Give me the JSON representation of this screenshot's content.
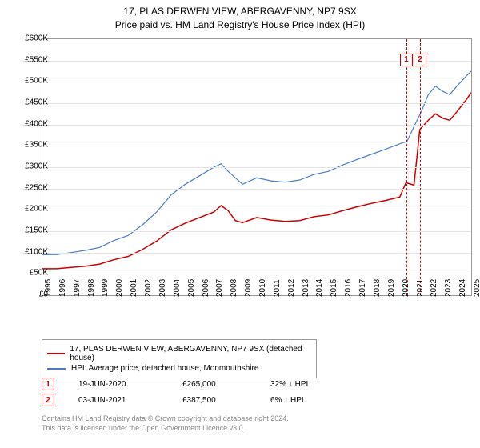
{
  "title_line1": "17, PLAS DERWEN VIEW, ABERGAVENNY, NP7 9SX",
  "title_line2": "Price paid vs. HM Land Registry's House Price Index (HPI)",
  "chart": {
    "type": "line",
    "background_color": "#ffffff",
    "grid_color": "#e5e5e5",
    "border_color": "#999999",
    "ylim": [
      0,
      600000
    ],
    "ytick_step": 50000,
    "yticklabels": [
      "£0",
      "£50K",
      "£100K",
      "£150K",
      "£200K",
      "£250K",
      "£300K",
      "£350K",
      "£400K",
      "£450K",
      "£500K",
      "£550K",
      "£600K"
    ],
    "xlim": [
      1995,
      2025
    ],
    "xticks": [
      1995,
      1996,
      1997,
      1998,
      1999,
      2000,
      2001,
      2002,
      2003,
      2004,
      2005,
      2006,
      2007,
      2008,
      2009,
      2010,
      2011,
      2012,
      2013,
      2014,
      2015,
      2016,
      2017,
      2018,
      2019,
      2020,
      2021,
      2022,
      2023,
      2024,
      2025
    ],
    "series": [
      {
        "name": "hpi",
        "color": "#4a7ec8",
        "width": 1.2,
        "data": [
          [
            1995,
            95000
          ],
          [
            1996,
            95000
          ],
          [
            1997,
            100000
          ],
          [
            1998,
            105000
          ],
          [
            1999,
            112000
          ],
          [
            2000,
            128000
          ],
          [
            2001,
            140000
          ],
          [
            2002,
            165000
          ],
          [
            2003,
            195000
          ],
          [
            2004,
            235000
          ],
          [
            2005,
            260000
          ],
          [
            2006,
            280000
          ],
          [
            2007,
            300000
          ],
          [
            2007.5,
            308000
          ],
          [
            2008,
            290000
          ],
          [
            2009,
            260000
          ],
          [
            2010,
            275000
          ],
          [
            2011,
            268000
          ],
          [
            2012,
            265000
          ],
          [
            2013,
            270000
          ],
          [
            2014,
            283000
          ],
          [
            2015,
            290000
          ],
          [
            2016,
            305000
          ],
          [
            2017,
            318000
          ],
          [
            2018,
            330000
          ],
          [
            2019,
            342000
          ],
          [
            2020,
            355000
          ],
          [
            2020.5,
            360000
          ],
          [
            2021,
            395000
          ],
          [
            2021.5,
            430000
          ],
          [
            2022,
            470000
          ],
          [
            2022.5,
            490000
          ],
          [
            2023,
            478000
          ],
          [
            2023.5,
            470000
          ],
          [
            2024,
            490000
          ],
          [
            2024.7,
            515000
          ],
          [
            2025,
            525000
          ]
        ]
      },
      {
        "name": "property",
        "color": "#cc0000",
        "width": 1.5,
        "data": [
          [
            1995,
            62000
          ],
          [
            1996,
            62000
          ],
          [
            1997,
            65000
          ],
          [
            1998,
            68000
          ],
          [
            1999,
            73000
          ],
          [
            2000,
            83000
          ],
          [
            2001,
            91000
          ],
          [
            2002,
            107000
          ],
          [
            2003,
            127000
          ],
          [
            2004,
            153000
          ],
          [
            2005,
            169000
          ],
          [
            2006,
            182000
          ],
          [
            2007,
            195000
          ],
          [
            2007.5,
            210000
          ],
          [
            2008,
            198000
          ],
          [
            2008.5,
            175000
          ],
          [
            2009,
            170000
          ],
          [
            2010,
            182000
          ],
          [
            2011,
            176000
          ],
          [
            2012,
            173000
          ],
          [
            2013,
            175000
          ],
          [
            2014,
            184000
          ],
          [
            2015,
            188000
          ],
          [
            2016,
            198000
          ],
          [
            2017,
            207000
          ],
          [
            2018,
            215000
          ],
          [
            2019,
            222000
          ],
          [
            2020,
            230000
          ],
          [
            2020.45,
            265000
          ],
          [
            2020.5,
            263000
          ],
          [
            2021,
            258000
          ],
          [
            2021.4,
            387500
          ],
          [
            2021.45,
            390000
          ],
          [
            2022,
            410000
          ],
          [
            2022.5,
            425000
          ],
          [
            2023,
            415000
          ],
          [
            2023.5,
            410000
          ],
          [
            2024,
            430000
          ],
          [
            2024.7,
            460000
          ],
          [
            2025,
            475000
          ]
        ]
      }
    ],
    "markers": [
      {
        "n": "1",
        "x": 2020.46,
        "color": "#cc0000"
      },
      {
        "n": "2",
        "x": 2021.42,
        "color": "#cc0000"
      }
    ],
    "marker_pin_y": 552000
  },
  "legend": {
    "items": [
      {
        "color": "#cc0000",
        "label": "17, PLAS DERWEN VIEW, ABERGAVENNY, NP7 9SX (detached house)"
      },
      {
        "color": "#4a7ec8",
        "label": "HPI: Average price, detached house, Monmouthshire"
      }
    ]
  },
  "transactions": [
    {
      "n": "1",
      "color": "#cc0000",
      "date": "19-JUN-2020",
      "price": "£265,000",
      "delta": "32% ↓ HPI"
    },
    {
      "n": "2",
      "color": "#cc0000",
      "date": "03-JUN-2021",
      "price": "£387,500",
      "delta": "6% ↓ HPI"
    }
  ],
  "footer_line1": "Contains HM Land Registry data © Crown copyright and database right 2024.",
  "footer_line2": "This data is licensed under the Open Government Licence v3.0."
}
